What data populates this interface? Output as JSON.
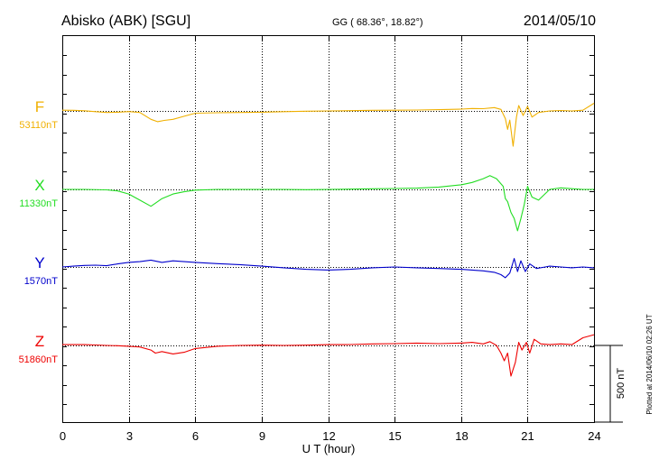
{
  "header": {
    "station": "Abisko (ABK)  [SGU]",
    "coords": "GG ( 68.36°,  18.82°)",
    "date": "2014/05/10"
  },
  "side_note": "Plotted at 2014/06/10 02:26 UT",
  "chart_data": {
    "type": "line",
    "title": "Abisko (ABK)  [SGU]",
    "xlabel": "U T (hour)",
    "xlim": [
      0,
      24
    ],
    "xticks": [
      "0",
      "3",
      "6",
      "9",
      "12",
      "15",
      "18",
      "21",
      "24"
    ],
    "scale_label": "500 nT",
    "scale_nT": 500,
    "grid": true,
    "series": [
      {
        "name": "F",
        "baseline_label": "53110nT",
        "color": "#f0b000",
        "offset_nT": 0,
        "x": [
          0,
          0.5,
          1,
          1.5,
          2,
          2.5,
          3,
          3.5,
          4,
          4.3,
          4.6,
          5,
          5.5,
          6,
          7,
          8,
          9,
          10,
          11,
          12,
          13,
          14,
          15,
          16,
          17,
          18,
          18.5,
          19,
          19.5,
          19.8,
          20,
          20.1,
          20.2,
          20.35,
          20.5,
          20.6,
          20.8,
          21,
          21.2,
          21.5,
          22,
          22.5,
          23,
          23.5,
          24
        ],
        "values": [
          5,
          4,
          1,
          -5,
          -10,
          -8,
          -4,
          -10,
          -55,
          -70,
          -62,
          -55,
          -35,
          -15,
          -12,
          -10,
          -8,
          -5,
          -2,
          0,
          2,
          4,
          5,
          6,
          8,
          12,
          16,
          15,
          22,
          10,
          -50,
          -120,
          -60,
          -230,
          -40,
          35,
          -30,
          30,
          -40,
          -10,
          0,
          3,
          0,
          5,
          50
        ]
      },
      {
        "name": "X",
        "baseline_label": "11330nT",
        "color": "#22dd22",
        "offset_nT": 0,
        "x": [
          0,
          1,
          2,
          2.5,
          3,
          3.5,
          4,
          4.2,
          4.5,
          5,
          5.5,
          6,
          7,
          8,
          9,
          10,
          11,
          12,
          13,
          14,
          15,
          16,
          17,
          18,
          18.5,
          19,
          19.3,
          19.6,
          19.9,
          20,
          20.1,
          20.25,
          20.4,
          20.55,
          20.7,
          20.85,
          21,
          21.2,
          21.5,
          22,
          22.5,
          23,
          23.5,
          24
        ],
        "values": [
          0,
          0,
          -3,
          -10,
          -30,
          -70,
          -110,
          -90,
          -60,
          -30,
          -15,
          -5,
          0,
          0,
          0,
          0,
          -2,
          0,
          2,
          4,
          6,
          8,
          15,
          30,
          45,
          70,
          90,
          70,
          20,
          -60,
          -80,
          -150,
          -190,
          -270,
          -190,
          -100,
          20,
          -50,
          -70,
          0,
          10,
          5,
          0,
          0
        ]
      },
      {
        "name": "Y",
        "baseline_label": "1570nT",
        "color": "#0000cc",
        "offset_nT": 0,
        "x": [
          0,
          0.5,
          1,
          1.5,
          2,
          2.5,
          3,
          3.5,
          4,
          4.5,
          5,
          5.5,
          6,
          7,
          8,
          9,
          10,
          11,
          12,
          13,
          14,
          15,
          16,
          17,
          18,
          19,
          19.5,
          19.8,
          20,
          20.2,
          20.4,
          20.55,
          20.7,
          20.9,
          21.1,
          21.4,
          21.8,
          22,
          22.5,
          23,
          23.5,
          24
        ],
        "values": [
          0,
          5,
          10,
          12,
          8,
          20,
          30,
          35,
          45,
          30,
          40,
          35,
          30,
          22,
          15,
          5,
          -5,
          -15,
          -20,
          -15,
          -5,
          0,
          -5,
          -10,
          -15,
          -25,
          -35,
          -50,
          -70,
          -40,
          55,
          -30,
          40,
          -30,
          20,
          -10,
          0,
          5,
          0,
          -5,
          0,
          -5
        ]
      },
      {
        "name": "Z",
        "baseline_label": "51860nT",
        "color": "#ee0000",
        "offset_nT": 0,
        "x": [
          0,
          0.5,
          1,
          1.5,
          2,
          2.5,
          3,
          3.5,
          4,
          4.2,
          4.5,
          5,
          5.5,
          6,
          7,
          8,
          9,
          10,
          11,
          12,
          13,
          14,
          15,
          16,
          17,
          18,
          18.5,
          19,
          19.3,
          19.6,
          19.8,
          19.95,
          20.1,
          20.25,
          20.45,
          20.6,
          20.75,
          20.95,
          21.1,
          21.3,
          21.6,
          22,
          22.5,
          23,
          23.5,
          24
        ],
        "values": [
          5,
          5,
          5,
          3,
          0,
          -2,
          -5,
          -10,
          -30,
          -50,
          -40,
          -55,
          -45,
          -20,
          -5,
          0,
          2,
          0,
          2,
          5,
          6,
          10,
          12,
          15,
          12,
          15,
          20,
          10,
          25,
          0,
          -50,
          -100,
          -50,
          -200,
          -110,
          20,
          -30,
          20,
          -50,
          40,
          10,
          5,
          10,
          5,
          50,
          70
        ]
      }
    ]
  }
}
